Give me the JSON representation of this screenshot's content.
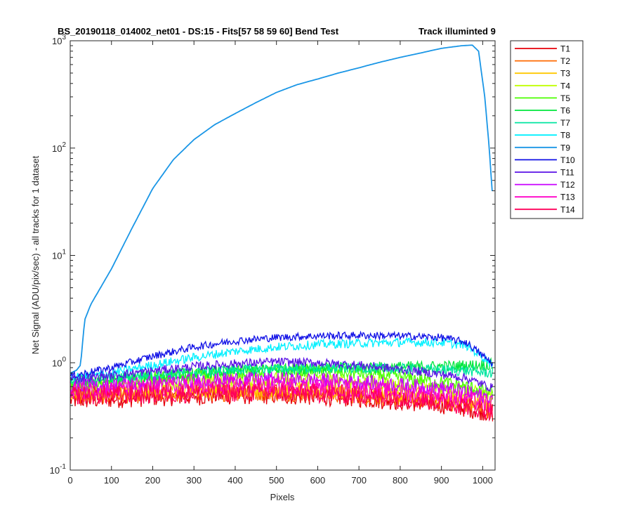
{
  "chart_data": {
    "type": "line",
    "title_left": "BS_20190118_014002_net01 - DS:15 - Fits[57  58  59  60]   Bend Test",
    "title_right": "Track illuminted 9",
    "xlabel": "Pixels",
    "ylabel": "Net Signal (ADU/pix/sec) - all tracks for 1 dataset",
    "xlim": [
      0,
      1030
    ],
    "ylim": [
      0.1,
      1000
    ],
    "yscale": "log",
    "legend_position": "outside-right",
    "x_ticks": [
      {
        "value": 0,
        "label": "0"
      },
      {
        "value": 100,
        "label": "100"
      },
      {
        "value": 200,
        "label": "200"
      },
      {
        "value": 300,
        "label": "300"
      },
      {
        "value": 400,
        "label": "400"
      },
      {
        "value": 500,
        "label": "500"
      },
      {
        "value": 600,
        "label": "600"
      },
      {
        "value": 700,
        "label": "700"
      },
      {
        "value": 800,
        "label": "800"
      },
      {
        "value": 900,
        "label": "900"
      },
      {
        "value": 1000,
        "label": "1000"
      }
    ],
    "y_ticks": [
      {
        "value": 0.1,
        "base": "10",
        "exp": "-1"
      },
      {
        "value": 1,
        "base": "10",
        "exp": "0"
      },
      {
        "value": 10,
        "base": "10",
        "exp": "1"
      },
      {
        "value": 100,
        "base": "10",
        "exp": "2"
      },
      {
        "value": 1000,
        "base": "10",
        "exp": "3"
      }
    ],
    "series": [
      {
        "name": "T1",
        "color": "#e6000a",
        "noise": 0.13,
        "points": [
          [
            0,
            0.45
          ],
          [
            100,
            0.46
          ],
          [
            200,
            0.48
          ],
          [
            300,
            0.49
          ],
          [
            400,
            0.5
          ],
          [
            500,
            0.5
          ],
          [
            600,
            0.49
          ],
          [
            700,
            0.47
          ],
          [
            800,
            0.44
          ],
          [
            900,
            0.41
          ],
          [
            960,
            0.38
          ],
          [
            1024,
            0.34
          ]
        ]
      },
      {
        "name": "T2",
        "color": "#ff6a00",
        "noise": 0.12,
        "points": [
          [
            0,
            0.5
          ],
          [
            100,
            0.5
          ],
          [
            200,
            0.51
          ],
          [
            300,
            0.52
          ],
          [
            400,
            0.53
          ],
          [
            500,
            0.53
          ],
          [
            600,
            0.52
          ],
          [
            700,
            0.5
          ],
          [
            800,
            0.47
          ],
          [
            900,
            0.44
          ],
          [
            960,
            0.41
          ],
          [
            1024,
            0.36
          ]
        ]
      },
      {
        "name": "T3",
        "color": "#ffc800",
        "noise": 0.11,
        "points": [
          [
            0,
            0.52
          ],
          [
            100,
            0.53
          ],
          [
            200,
            0.55
          ],
          [
            300,
            0.56
          ],
          [
            400,
            0.57
          ],
          [
            500,
            0.57
          ],
          [
            600,
            0.56
          ],
          [
            700,
            0.54
          ],
          [
            800,
            0.51
          ],
          [
            900,
            0.48
          ],
          [
            960,
            0.45
          ],
          [
            1024,
            0.4
          ]
        ]
      },
      {
        "name": "T4",
        "color": "#c0ff00",
        "noise": 0.1,
        "points": [
          [
            0,
            0.58
          ],
          [
            100,
            0.6
          ],
          [
            200,
            0.64
          ],
          [
            300,
            0.67
          ],
          [
            400,
            0.7
          ],
          [
            500,
            0.7
          ],
          [
            600,
            0.69
          ],
          [
            700,
            0.66
          ],
          [
            800,
            0.62
          ],
          [
            900,
            0.58
          ],
          [
            960,
            0.55
          ],
          [
            1024,
            0.48
          ]
        ]
      },
      {
        "name": "T5",
        "color": "#4cff00",
        "noise": 0.09,
        "points": [
          [
            0,
            0.62
          ],
          [
            100,
            0.66
          ],
          [
            200,
            0.72
          ],
          [
            300,
            0.77
          ],
          [
            400,
            0.82
          ],
          [
            500,
            0.85
          ],
          [
            600,
            0.84
          ],
          [
            700,
            0.8
          ],
          [
            800,
            0.73
          ],
          [
            900,
            0.66
          ],
          [
            960,
            0.6
          ],
          [
            1024,
            0.52
          ]
        ]
      },
      {
        "name": "T6",
        "color": "#00e63c",
        "noise": 0.08,
        "points": [
          [
            0,
            0.66
          ],
          [
            100,
            0.7
          ],
          [
            200,
            0.75
          ],
          [
            300,
            0.8
          ],
          [
            400,
            0.84
          ],
          [
            500,
            0.87
          ],
          [
            600,
            0.89
          ],
          [
            700,
            0.9
          ],
          [
            800,
            0.91
          ],
          [
            900,
            0.92
          ],
          [
            960,
            0.94
          ],
          [
            1024,
            0.96
          ]
        ]
      },
      {
        "name": "T7",
        "color": "#00e6a0",
        "noise": 0.07,
        "points": [
          [
            0,
            0.68
          ],
          [
            100,
            0.72
          ],
          [
            200,
            0.77
          ],
          [
            300,
            0.82
          ],
          [
            400,
            0.86
          ],
          [
            500,
            0.88
          ],
          [
            600,
            0.89
          ],
          [
            700,
            0.89
          ],
          [
            800,
            0.88
          ],
          [
            900,
            0.86
          ],
          [
            960,
            0.84
          ],
          [
            1024,
            0.8
          ]
        ]
      },
      {
        "name": "T8",
        "color": "#00f0ff",
        "noise": 0.06,
        "points": [
          [
            0,
            0.72
          ],
          [
            100,
            0.8
          ],
          [
            200,
            0.95
          ],
          [
            300,
            1.12
          ],
          [
            400,
            1.28
          ],
          [
            500,
            1.4
          ],
          [
            600,
            1.48
          ],
          [
            700,
            1.52
          ],
          [
            800,
            1.55
          ],
          [
            900,
            1.55
          ],
          [
            960,
            1.45
          ],
          [
            1024,
            0.98
          ]
        ]
      },
      {
        "name": "T9",
        "color": "#1a96e6",
        "noise": 0.0,
        "points": [
          [
            0,
            0.8
          ],
          [
            15,
            0.85
          ],
          [
            25,
            0.95
          ],
          [
            35,
            2.5
          ],
          [
            50,
            3.5
          ],
          [
            100,
            7.5
          ],
          [
            150,
            18
          ],
          [
            200,
            42
          ],
          [
            250,
            78
          ],
          [
            300,
            120
          ],
          [
            350,
            165
          ],
          [
            400,
            210
          ],
          [
            450,
            265
          ],
          [
            500,
            330
          ],
          [
            550,
            390
          ],
          [
            600,
            440
          ],
          [
            650,
            500
          ],
          [
            700,
            560
          ],
          [
            750,
            630
          ],
          [
            800,
            700
          ],
          [
            850,
            770
          ],
          [
            900,
            850
          ],
          [
            950,
            900
          ],
          [
            975,
            910
          ],
          [
            990,
            800
          ],
          [
            1005,
            300
          ],
          [
            1015,
            110
          ],
          [
            1024,
            35
          ]
        ]
      },
      {
        "name": "T10",
        "color": "#1010e6",
        "noise": 0.05,
        "points": [
          [
            0,
            0.75
          ],
          [
            100,
            0.9
          ],
          [
            200,
            1.15
          ],
          [
            300,
            1.4
          ],
          [
            400,
            1.6
          ],
          [
            500,
            1.72
          ],
          [
            600,
            1.78
          ],
          [
            700,
            1.8
          ],
          [
            800,
            1.78
          ],
          [
            900,
            1.72
          ],
          [
            960,
            1.55
          ],
          [
            1024,
            0.98
          ]
        ]
      },
      {
        "name": "T11",
        "color": "#5a10e6",
        "noise": 0.06,
        "points": [
          [
            0,
            0.7
          ],
          [
            100,
            0.76
          ],
          [
            200,
            0.84
          ],
          [
            300,
            0.92
          ],
          [
            400,
            0.98
          ],
          [
            500,
            1.02
          ],
          [
            600,
            1.0
          ],
          [
            700,
            0.95
          ],
          [
            800,
            0.87
          ],
          [
            900,
            0.78
          ],
          [
            960,
            0.72
          ],
          [
            1024,
            0.58
          ]
        ]
      },
      {
        "name": "T12",
        "color": "#c800ff",
        "noise": 0.1,
        "points": [
          [
            0,
            0.6
          ],
          [
            100,
            0.62
          ],
          [
            200,
            0.65
          ],
          [
            300,
            0.68
          ],
          [
            400,
            0.7
          ],
          [
            500,
            0.7
          ],
          [
            600,
            0.69
          ],
          [
            700,
            0.66
          ],
          [
            800,
            0.62
          ],
          [
            900,
            0.58
          ],
          [
            960,
            0.54
          ],
          [
            1024,
            0.46
          ]
        ]
      },
      {
        "name": "T13",
        "color": "#ff00c8",
        "noise": 0.12,
        "points": [
          [
            0,
            0.55
          ],
          [
            100,
            0.56
          ],
          [
            200,
            0.58
          ],
          [
            300,
            0.6
          ],
          [
            400,
            0.61
          ],
          [
            500,
            0.61
          ],
          [
            600,
            0.6
          ],
          [
            700,
            0.57
          ],
          [
            800,
            0.53
          ],
          [
            900,
            0.49
          ],
          [
            960,
            0.46
          ],
          [
            1024,
            0.4
          ]
        ]
      },
      {
        "name": "T14",
        "color": "#ff005a",
        "noise": 0.13,
        "points": [
          [
            0,
            0.5
          ],
          [
            100,
            0.5
          ],
          [
            200,
            0.51
          ],
          [
            300,
            0.52
          ],
          [
            400,
            0.53
          ],
          [
            500,
            0.53
          ],
          [
            600,
            0.52
          ],
          [
            700,
            0.5
          ],
          [
            800,
            0.47
          ],
          [
            900,
            0.43
          ],
          [
            960,
            0.4
          ],
          [
            1024,
            0.35
          ]
        ]
      }
    ]
  }
}
